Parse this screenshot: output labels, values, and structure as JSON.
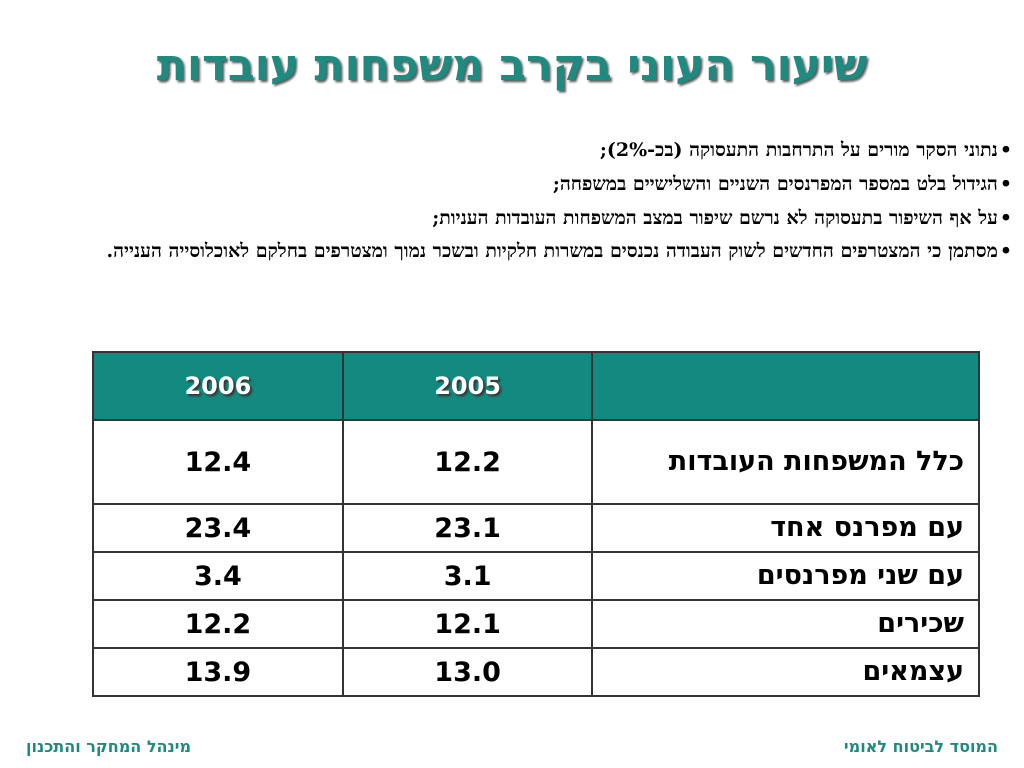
{
  "title": "שיעור העוני בקרב משפחות עובדות",
  "bullets": [
    "נתוני הסקר מורים על התרחבות התעסוקה (בכ-2%);",
    "הגידול בלט במספר המפרנסים השניים והשלישיים במשפחה;",
    "על אף השיפור בתעסוקה לא נרשם שיפור במצב המשפחות העובדות העניות;",
    "מסתמן כי המצטרפים החדשים לשוק העבודה נכנסים במשרות חלקיות ובשכר נמוך ומצטרפים בחלקם לאוכלוסייה הענייה."
  ],
  "bullet_glyph": "•",
  "table": {
    "headers": [
      "",
      "2005",
      "2006"
    ],
    "rows": [
      {
        "label": "כלל המשפחות העובדות",
        "v2005": "12.2",
        "v2006": "12.4"
      },
      {
        "label": "עם מפרנס אחד",
        "v2005": "23.1",
        "v2006": "23.4"
      },
      {
        "label": "עם שני מפרנסים",
        "v2005": "3.1",
        "v2006": "3.4"
      },
      {
        "label": "שכירים",
        "v2005": "12.1",
        "v2006": "12.2"
      },
      {
        "label": "עצמאים",
        "v2005": "13.0",
        "v2006": "13.9"
      }
    ]
  },
  "footer": {
    "right": "המוסד לביטוח לאומי",
    "left": "מינהל המחקר והתכנון"
  },
  "colors": {
    "accent": "#1f8a80",
    "header_bg": "#138a80"
  }
}
